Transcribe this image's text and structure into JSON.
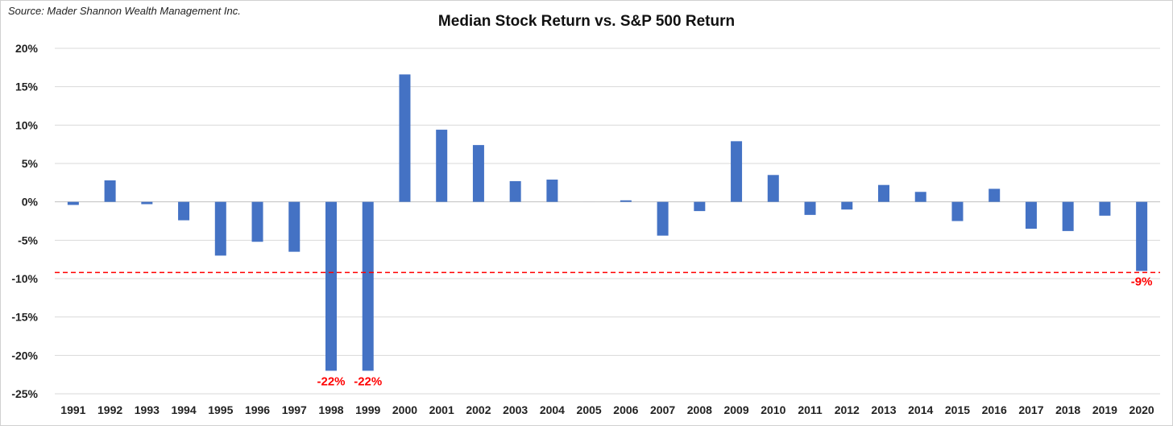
{
  "source_note": "Source: Mader Shannon Wealth Management Inc.",
  "chart_data": {
    "type": "bar",
    "title": "Median Stock Return vs. S&P 500 Return",
    "xlabel": "",
    "ylabel": "",
    "ylim": [
      -25,
      20
    ],
    "y_ticks": [
      "20%",
      "15%",
      "10%",
      "5%",
      "0%",
      "-5%",
      "-10%",
      "-15%",
      "-20%",
      "-25%"
    ],
    "y_tick_values": [
      20,
      15,
      10,
      5,
      0,
      -5,
      -10,
      -15,
      -20,
      -25
    ],
    "grid": true,
    "bar_color": "#4472C4",
    "categories": [
      "1991",
      "1992",
      "1993",
      "1994",
      "1995",
      "1996",
      "1997",
      "1998",
      "1999",
      "2000",
      "2001",
      "2002",
      "2003",
      "2004",
      "2005",
      "2006",
      "2007",
      "2008",
      "2009",
      "2010",
      "2011",
      "2012",
      "2013",
      "2014",
      "2015",
      "2016",
      "2017",
      "2018",
      "2019",
      "2020"
    ],
    "values": [
      -0.4,
      2.8,
      -0.3,
      -2.4,
      -7.0,
      -5.2,
      -6.5,
      -22.0,
      -22.0,
      16.6,
      9.4,
      7.4,
      2.7,
      2.9,
      0.0,
      0.2,
      -4.4,
      -1.2,
      7.9,
      3.5,
      -1.7,
      -1.0,
      2.2,
      1.3,
      -2.5,
      1.7,
      -3.5,
      -3.8,
      -1.8,
      -9.0
    ],
    "reference_line": {
      "value": -9.2,
      "color": "#FF0000",
      "style": "dashed"
    },
    "annotations": [
      {
        "category": "1998",
        "text": "-22%",
        "color": "#FF0000"
      },
      {
        "category": "1999",
        "text": "-22%",
        "color": "#FF0000"
      },
      {
        "category": "2020",
        "text": "-9%",
        "color": "#FF0000"
      }
    ]
  }
}
